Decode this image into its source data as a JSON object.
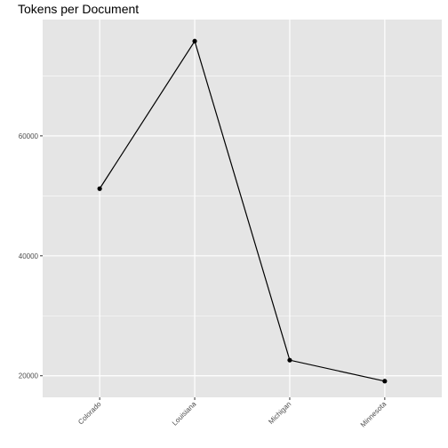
{
  "chart_data": {
    "type": "line",
    "title": "Tokens per Document",
    "xlabel": "",
    "ylabel": "",
    "categories": [
      "Colorado",
      "Louisiana",
      "Michigan",
      "Minnesota"
    ],
    "values": [
      51200,
      75800,
      22600,
      19100
    ],
    "ylim": [
      16400,
      79400
    ],
    "yticks": [
      20000,
      40000,
      60000
    ],
    "ytick_labels": [
      "20000",
      "40000",
      "60000"
    ],
    "grid": true,
    "legend": "none",
    "colors": {
      "panel": "#e5e5e5",
      "grid": "#ffffff",
      "line": "#000000",
      "tick_text": "#4d4d4d"
    }
  }
}
